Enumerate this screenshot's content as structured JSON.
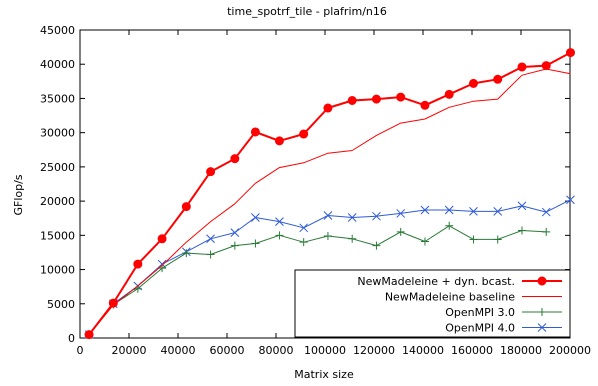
{
  "chart_data": {
    "type": "line",
    "title": "time_spotrf_tile - plafrim/n16",
    "xlabel": "Matrix size",
    "ylabel": "GFlop/s",
    "xlim": [
      0,
      200000
    ],
    "ylim": [
      0,
      45000
    ],
    "x_ticks": [
      0,
      20000,
      40000,
      60000,
      80000,
      100000,
      120000,
      140000,
      160000,
      180000,
      200000
    ],
    "y_ticks": [
      0,
      5000,
      10000,
      15000,
      20000,
      25000,
      30000,
      35000,
      40000,
      45000
    ],
    "grid": false,
    "legend_position": "bottom-right",
    "series": [
      {
        "name": "NewMadeleine + dyn. bcast.",
        "color": "#ff0000",
        "marker": "filled-circle",
        "line_width": 2,
        "x": [
          3700,
          13600,
          23600,
          33500,
          43400,
          53300,
          63200,
          71600,
          81400,
          91300,
          101200,
          111100,
          121000,
          130900,
          140800,
          150700,
          160600,
          170500,
          180400,
          190300,
          200200
        ],
        "values": [
          500,
          5100,
          10800,
          14500,
          19200,
          24300,
          26200,
          30100,
          28800,
          29800,
          33600,
          34700,
          34900,
          35200,
          34000,
          35600,
          37200,
          37800,
          39600,
          39800,
          41700
        ]
      },
      {
        "name": "NewMadeleine baseline",
        "color": "#ff0000",
        "marker": "none",
        "line_width": 1,
        "x": [
          3700,
          13600,
          23600,
          33500,
          43400,
          53300,
          63200,
          71600,
          81400,
          91300,
          101200,
          111100,
          121000,
          130900,
          140800,
          150700,
          160600,
          170500,
          180400,
          190300,
          200200
        ],
        "values": [
          500,
          4800,
          7600,
          10600,
          14000,
          17000,
          19600,
          22600,
          24900,
          25600,
          27000,
          27400,
          29600,
          31400,
          32000,
          33700,
          34600,
          34900,
          38400,
          39300,
          38600
        ]
      },
      {
        "name": "OpenMPI 3.0",
        "color": "#2a7a37",
        "marker": "plus",
        "line_width": 1,
        "x": [
          3700,
          13600,
          23600,
          33500,
          43400,
          53300,
          63200,
          71600,
          81400,
          91300,
          101200,
          111100,
          121000,
          130900,
          140800,
          150700,
          160600,
          170500,
          180400,
          190300
        ],
        "values": [
          500,
          4900,
          7200,
          10200,
          12400,
          12200,
          13500,
          13800,
          15000,
          14000,
          14900,
          14500,
          13500,
          15500,
          14100,
          16400,
          14400,
          14400,
          15700,
          15500
        ]
      },
      {
        "name": "OpenMPI 4.0",
        "color": "#2f5bd6",
        "marker": "x",
        "line_width": 1,
        "x": [
          3700,
          13600,
          23600,
          33500,
          43400,
          53300,
          63200,
          71600,
          81400,
          91300,
          101200,
          111100,
          121000,
          130900,
          140800,
          150700,
          160600,
          170500,
          180400,
          190300,
          200200
        ],
        "values": [
          500,
          5000,
          7600,
          10800,
          12600,
          14500,
          15400,
          17600,
          17000,
          16100,
          17900,
          17600,
          17800,
          18200,
          18700,
          18700,
          18500,
          18500,
          19300,
          18400,
          20200
        ]
      }
    ]
  }
}
